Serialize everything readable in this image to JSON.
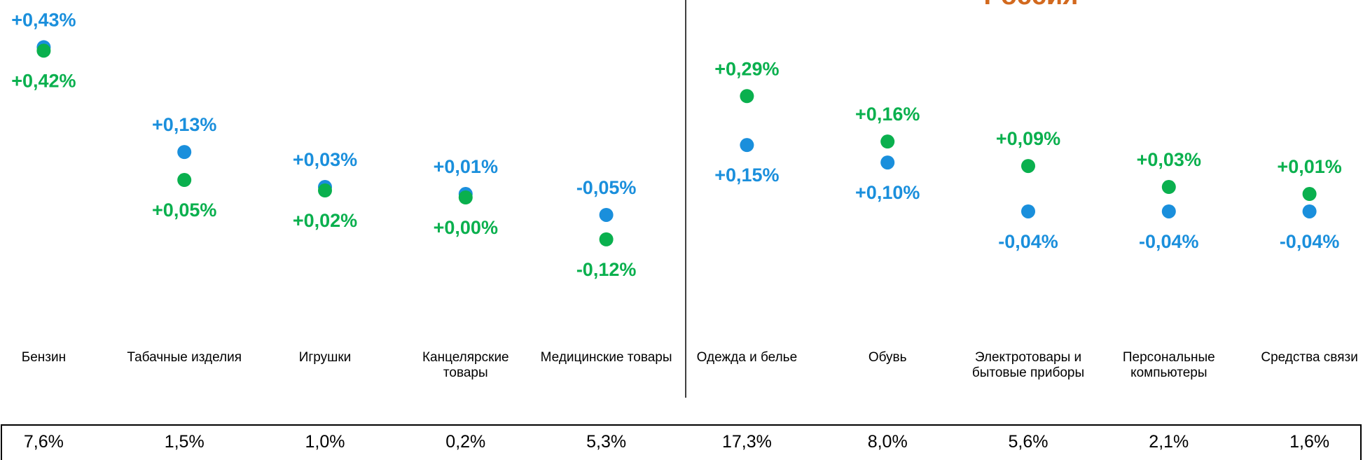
{
  "chart_data": {
    "type": "dot",
    "title": "Россия",
    "categories": [
      "Бензин",
      "Табачные изделия",
      "Игрушки",
      "Канцелярские\nтовары",
      "Медицинские товары",
      "Одежда и белье",
      "Обувь",
      "Электротовары и\nбытовые приборы",
      "Персональные\nкомпьютеры",
      "Средства связи"
    ],
    "series": [
      {
        "color": "#1a8fdc",
        "values": [
          0.43,
          0.13,
          0.03,
          0.01,
          -0.05,
          0.15,
          0.1,
          -0.04,
          -0.04,
          -0.04
        ],
        "value_labels": [
          "+0,43%",
          "+0,13%",
          "+0,03%",
          "+0,01%",
          "-0,05%",
          "+0,15%",
          "+0,10%",
          "-0,04%",
          "-0,04%",
          "-0,04%"
        ]
      },
      {
        "color": "#0ab04e",
        "values": [
          0.42,
          0.05,
          0.02,
          0.0,
          -0.12,
          0.29,
          0.16,
          0.09,
          0.03,
          0.01
        ],
        "value_labels": [
          "+0,42%",
          "+0,05%",
          "+0,02%",
          "+0,00%",
          "-0,12%",
          "+0,29%",
          "+0,16%",
          "+0,09%",
          "+0,03%",
          "+0,01%"
        ]
      }
    ],
    "ylim": [
      -0.3,
      0.5
    ],
    "title_color": "#d2691e",
    "shares": [
      "7,6%",
      "1,5%",
      "1,0%",
      "0,2%",
      "5,3%",
      "17,3%",
      "8,0%",
      "5,6%",
      "2,1%",
      "1,6%"
    ]
  }
}
